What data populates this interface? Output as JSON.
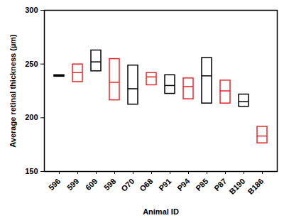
{
  "chart_data": {
    "type": "box",
    "xlabel": "Animal ID",
    "ylabel": "Average retinal thickness (µm)",
    "categories": [
      "596",
      "599",
      "609",
      "598",
      "O70",
      "O68",
      "P91",
      "P94",
      "P85",
      "P87",
      "B190",
      "B186"
    ],
    "min": [
      237,
      232,
      242,
      215,
      211,
      229,
      221,
      216,
      212,
      212,
      209,
      175
    ],
    "median": [
      239,
      242,
      252,
      233,
      227,
      238,
      230,
      229,
      239,
      225,
      215,
      183
    ],
    "max": [
      241,
      251,
      264,
      256,
      250,
      243,
      241,
      238,
      257,
      236,
      223,
      193
    ],
    "colors": [
      "#000000",
      "#e8252b",
      "#000000",
      "#e8252b",
      "#000000",
      "#e8252b",
      "#000000",
      "#e8252b",
      "#000000",
      "#e8252b",
      "#000000",
      "#e8252b"
    ],
    "ylim": [
      150,
      300
    ],
    "yticks": [
      150,
      200,
      250,
      300
    ],
    "grid": false
  }
}
